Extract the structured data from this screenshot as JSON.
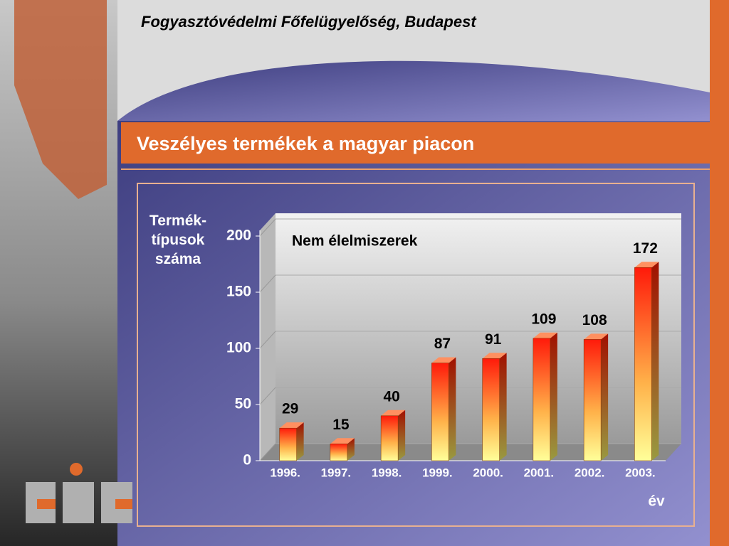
{
  "header": {
    "title": "Fogyasztóvédelmi Főfelügyelőség, Budapest"
  },
  "section_title": "Veszélyes termékek a magyar piacon",
  "chart_data": {
    "type": "bar3d",
    "y_label": "Termék-típusok száma",
    "x_label": "év",
    "annotation": "Nem élelmiszerek",
    "categories": [
      "1996.",
      "1997.",
      "1998.",
      "1999.",
      "2000.",
      "2001.",
      "2002.",
      "2003."
    ],
    "values": [
      29,
      15,
      40,
      87,
      91,
      109,
      108,
      172
    ],
    "ylim": [
      0,
      200
    ],
    "yticks": [
      0,
      50,
      100,
      150,
      200
    ],
    "grid": true
  }
}
